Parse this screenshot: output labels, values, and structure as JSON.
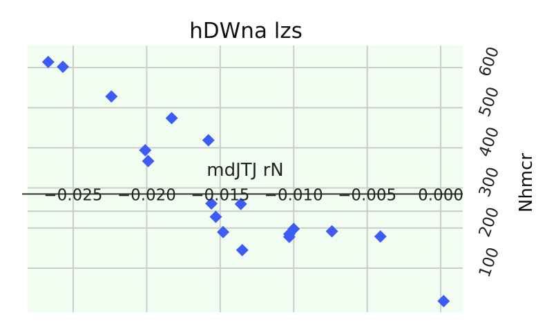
{
  "chart_data": {
    "type": "scatter",
    "title": "hDWna  lzs",
    "xlabel": "mdJTJ rN",
    "ylabel": "Nhmcr",
    "xlim": [
      -0.0281,
      0.0015
    ],
    "ylim": [
      -10,
      655
    ],
    "xticks": [
      -0.025,
      -0.02,
      -0.015,
      -0.01,
      -0.005,
      0.0
    ],
    "xtick_labels": [
      "−0.025",
      "−0.020",
      "−0.015",
      "−0.010",
      "−0.005",
      "0.000"
    ],
    "yticks": [
      100,
      200,
      300,
      400,
      500,
      600
    ],
    "ytick_labels": [
      "100",
      "200",
      "300",
      "400",
      "500",
      "600"
    ],
    "hlines_extra": [
      285,
      242
    ],
    "grid": true,
    "background": "#f0fdf0",
    "marker_color": "#3d5cf5",
    "x": [
      -0.0267,
      -0.0257,
      -0.0224,
      -0.0201,
      -0.0199,
      -0.0183,
      -0.0158,
      -0.0156,
      -0.0153,
      -0.0148,
      -0.0136,
      -0.0135,
      -0.0103,
      -0.0103,
      -0.01,
      -0.0074,
      -0.0041,
      0.0002
    ],
    "y": [
      614,
      602,
      528,
      394,
      367,
      474,
      419,
      261,
      228,
      190,
      260,
      145,
      185,
      178,
      198,
      192,
      179,
      18
    ]
  }
}
